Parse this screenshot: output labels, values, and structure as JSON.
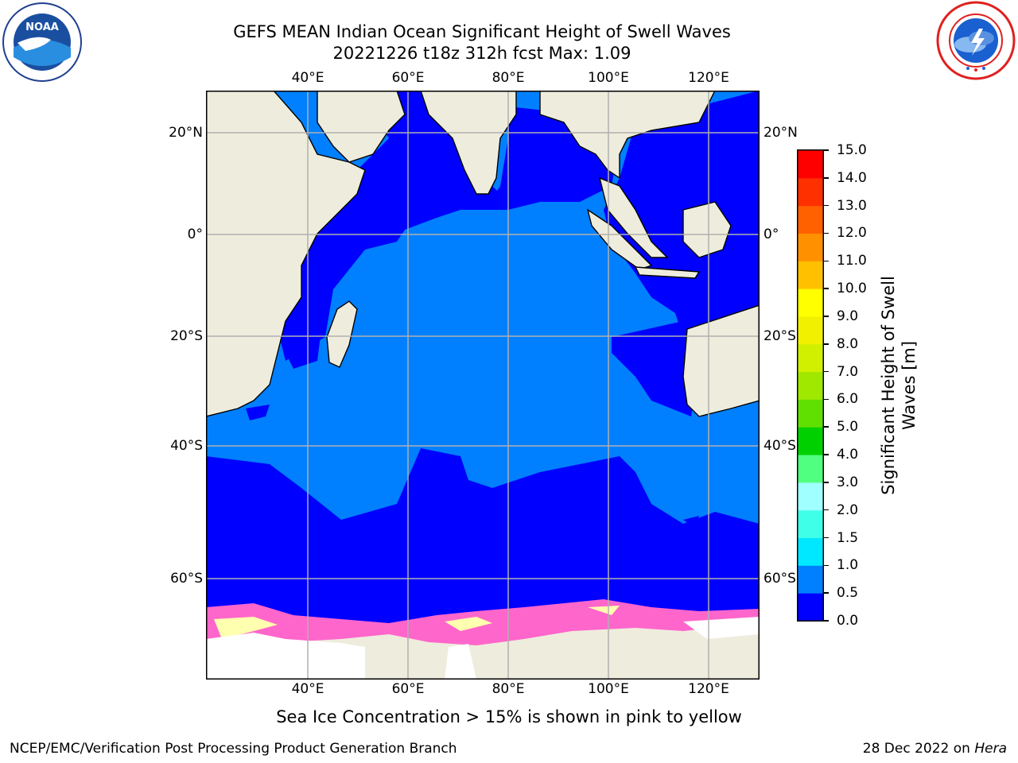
{
  "header": {
    "title_line1": "GEFS MEAN Indian Ocean Significant Height of Swell Waves",
    "title_line2": "20221226 t18z 312h fcst   Max: 1.09"
  },
  "logos": {
    "left": {
      "name": "noaa-logo",
      "text": "NOAA",
      "ring_text": "NATIONAL OCEANIC AND ATMOSPHERIC ADMINISTRATION · U.S. DEPARTMENT OF COMMERCE"
    },
    "right": {
      "name": "nws-logo",
      "ring_text": "NATIONAL WEATHER SERVICE"
    }
  },
  "map": {
    "lon_labels": [
      "40°E",
      "60°E",
      "80°E",
      "100°E",
      "120°E"
    ],
    "lat_labels": [
      "20°N",
      "0°",
      "20°S",
      "40°S",
      "60°S"
    ],
    "colors": {
      "land": "#eeecdc",
      "swell_0_0_5": "#0000ff",
      "swell_0_5_1_0": "#0080ff",
      "ice": "#ff66cc",
      "ice_high": "#ffffb0",
      "ice_shelf": "#ffffff",
      "grid": "#b0b0b0"
    }
  },
  "colorbar": {
    "title_line1": "Significant Height of Swell",
    "title_line2": "Waves [m]",
    "ticks": [
      "0.0",
      "0.5",
      "1.0",
      "1.5",
      "2.0",
      "3.0",
      "4.0",
      "5.0",
      "6.0",
      "7.0",
      "8.0",
      "9.0",
      "10.0",
      "11.0",
      "12.0",
      "13.0",
      "14.0",
      "15.0"
    ],
    "colors": [
      "#0000ff",
      "#0080ff",
      "#00e8ff",
      "#40ffe8",
      "#a0ffff",
      "#50ff80",
      "#00d000",
      "#60e000",
      "#a0e800",
      "#d0f000",
      "#f0f000",
      "#ffff00",
      "#ffc000",
      "#ff9000",
      "#ff6000",
      "#ff3000",
      "#ff0000"
    ]
  },
  "footer": {
    "note": "Sea Ice Concentration > 15% is shown in pink to yellow",
    "left": "NCEP/EMC/Verification Post Processing Product Generation Branch",
    "right_date": "28 Dec 2022 on ",
    "right_host": "Hera"
  }
}
